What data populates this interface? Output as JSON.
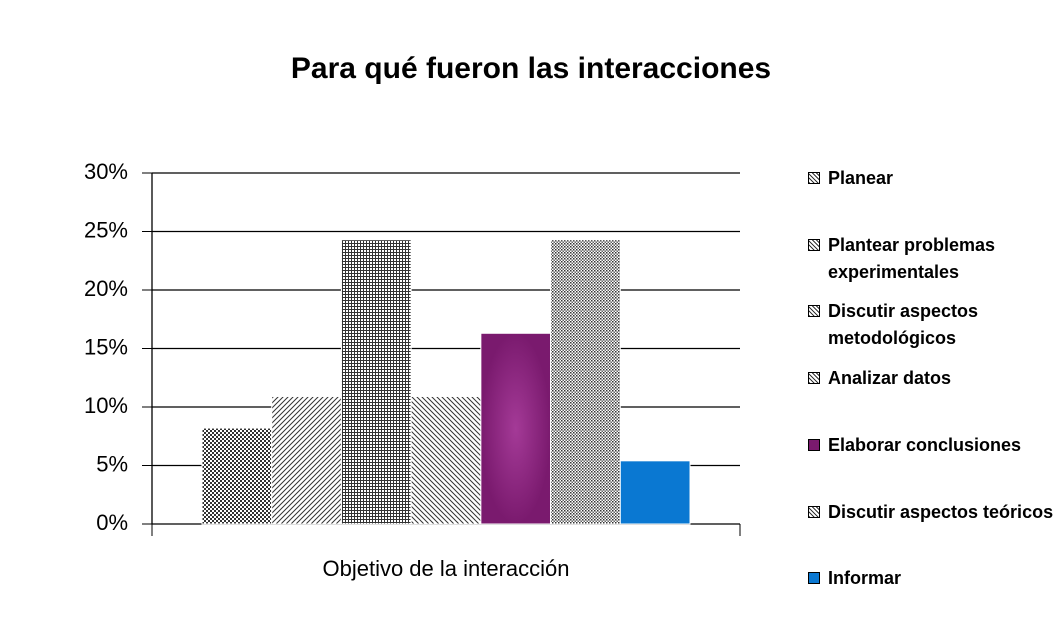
{
  "chart_data": {
    "type": "bar",
    "title": "Para qué fueron las interacciones",
    "xlabel": "Objetivo de la interacción",
    "categories": [
      null
    ],
    "series": [
      {
        "name": "Planear",
        "color": "#333333",
        "pattern": "checker",
        "values": [
          8.2
        ]
      },
      {
        "name": "Plantear problemas experimentales",
        "color": "#333333",
        "pattern": "diagonal",
        "values": [
          10.9
        ]
      },
      {
        "name": "Discutir aspectos metodológicos",
        "color": "#333333",
        "pattern": "grid",
        "values": [
          24.3
        ]
      },
      {
        "name": "Analizar datos",
        "color": "#333333",
        "pattern": "backdiagonal",
        "values": [
          10.9
        ]
      },
      {
        "name": "Elaborar conclusiones",
        "color": "#7a1a6e",
        "pattern": "radial",
        "values": [
          16.3
        ]
      },
      {
        "name": "Discutir aspectos teóricos",
        "color": "#333333",
        "pattern": "dense",
        "values": [
          24.3
        ]
      },
      {
        "name": "Informar",
        "color": "#0a78d2",
        "pattern": "solid",
        "values": [
          5.4
        ]
      }
    ],
    "ylim": [
      0,
      30
    ],
    "yticks": [
      {
        "value": 0,
        "label": "0%"
      },
      {
        "value": 5,
        "label": "5%"
      },
      {
        "value": 10,
        "label": "10%"
      },
      {
        "value": 15,
        "label": "15%"
      },
      {
        "value": 20,
        "label": "20%"
      },
      {
        "value": 25,
        "label": "25%"
      },
      {
        "value": 30,
        "label": "30%"
      }
    ],
    "grid": true,
    "legend": "right"
  }
}
